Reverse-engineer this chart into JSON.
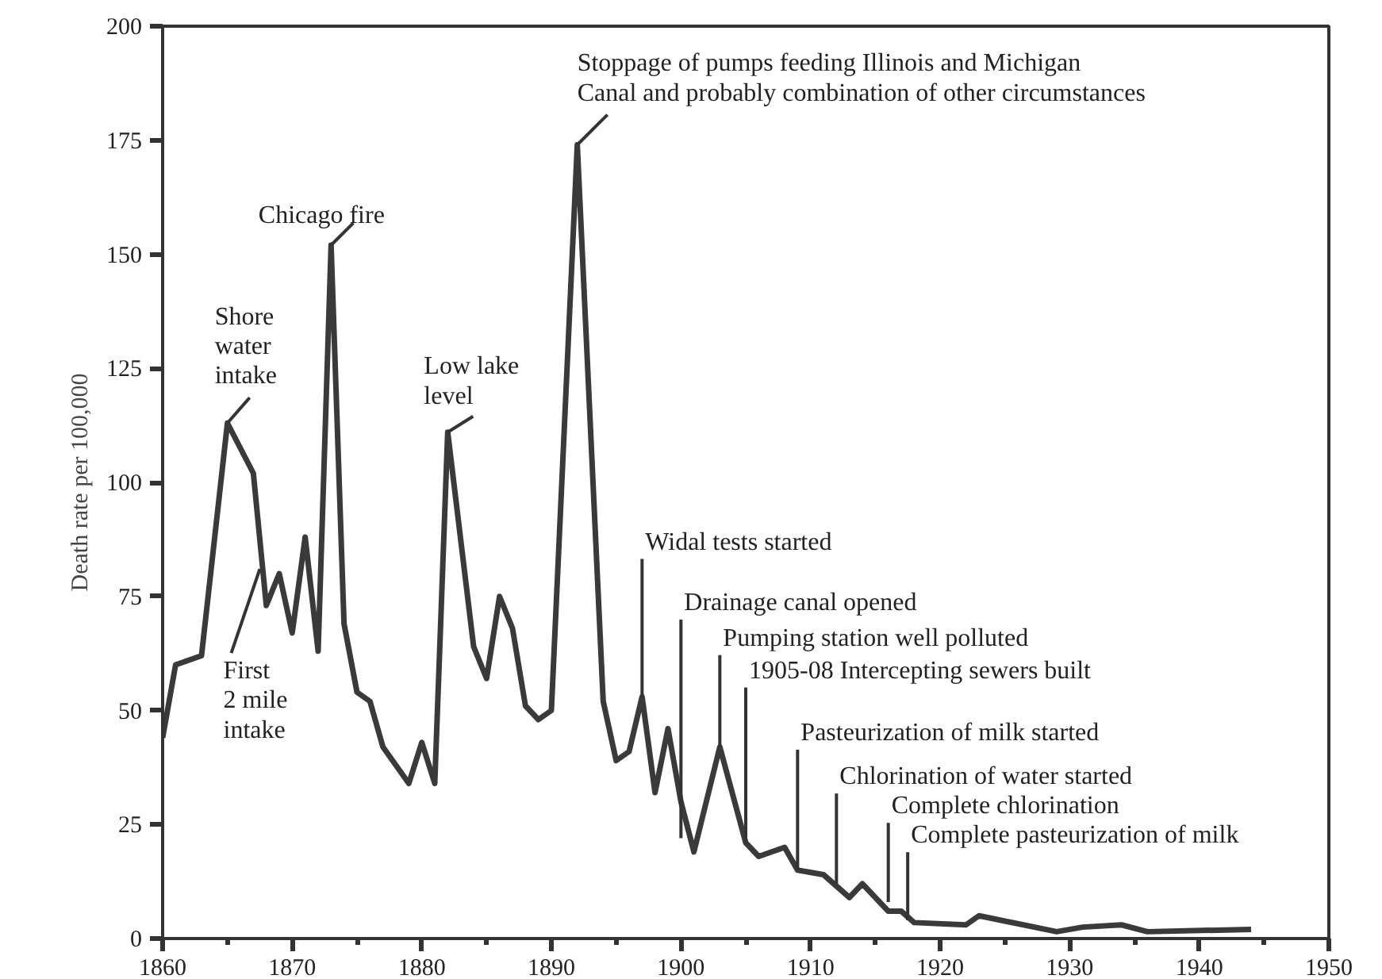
{
  "chart_data": {
    "type": "line",
    "ylabel": "Death rate per 100,000",
    "x": [
      1860,
      1861,
      1863,
      1865,
      1867,
      1868,
      1869,
      1870,
      1871,
      1872,
      1873,
      1874,
      1875,
      1876,
      1877,
      1879,
      1880,
      1881,
      1882,
      1884,
      1885,
      1886,
      1887,
      1888,
      1889,
      1890,
      1892,
      1894,
      1895,
      1896,
      1897,
      1898,
      1899,
      1900,
      1901,
      1903,
      1905,
      1906,
      1908,
      1909,
      1911,
      1913,
      1914,
      1916,
      1917,
      1918,
      1922,
      1923,
      1929,
      1931,
      1934,
      1936,
      1944
    ],
    "series": [
      {
        "color": "#3a3a3a",
        "values": [
          44,
          60,
          62,
          113,
          102,
          73,
          80,
          67,
          88,
          63,
          152,
          69,
          54,
          52,
          42,
          34,
          43,
          34,
          111,
          64,
          57,
          75,
          68,
          51,
          48,
          50,
          174,
          52,
          39,
          41,
          53,
          32,
          46,
          30,
          19,
          42,
          21,
          18,
          20,
          15,
          14,
          9,
          12,
          6,
          6,
          3.5,
          3,
          5,
          1.5,
          2.5,
          3,
          1.5,
          2
        ]
      }
    ],
    "xlim": [
      1860,
      1950
    ],
    "ylim": [
      0,
      200
    ],
    "xticks": [
      1860,
      {
        "value": 1865,
        "label": null
      },
      1870,
      {
        "value": 1875,
        "label": null
      },
      1880,
      {
        "value": 1885,
        "label": null
      },
      1890,
      {
        "value": 1895,
        "label": null
      },
      1900,
      {
        "value": 1905,
        "label": null
      },
      1910,
      {
        "value": 1915,
        "label": null
      },
      1920,
      {
        "value": 1925,
        "label": null
      },
      1930,
      {
        "value": 1935,
        "label": null
      },
      1940,
      {
        "value": 1945,
        "label": null
      },
      1950
    ],
    "yticks": [
      0,
      25,
      50,
      75,
      100,
      125,
      150,
      175,
      200
    ],
    "grid": false,
    "marker": "none",
    "line_style": "solid",
    "annotations": [
      {
        "text": "Shore\nwater\nintake",
        "x": 1865,
        "y": 113
      },
      {
        "text": "First\n2 mile\nintake",
        "x": 1867.5,
        "y": 81
      },
      {
        "text": "Chicago fire",
        "x": 1873,
        "y": 152
      },
      {
        "text": "Low lake\nlevel",
        "x": 1882,
        "y": 111
      },
      {
        "text": "Stoppage of pumps feeding Illinois and Michigan\nCanal and probably combination of other circumstances",
        "x": 1892,
        "y": 174
      },
      {
        "text": "Widal tests started",
        "x": 1897,
        "y": 53
      },
      {
        "text": "Drainage canal opened",
        "x": 1900,
        "y": 22
      },
      {
        "text": "Pumping station well polluted",
        "x": 1903,
        "y": 42
      },
      {
        "text": "1905-08 Intercepting sewers built",
        "x": 1905,
        "y": 21
      },
      {
        "text": "Pasteurization of milk started",
        "x": 1909,
        "y": 15
      },
      {
        "text": "Chlorination of water started",
        "x": 1912,
        "y": 12
      },
      {
        "text": "Complete chlorination",
        "x": 1916,
        "y": 8
      },
      {
        "text": "Complete pasteurization of milk",
        "x": 1917.5,
        "y": 4
      }
    ]
  }
}
